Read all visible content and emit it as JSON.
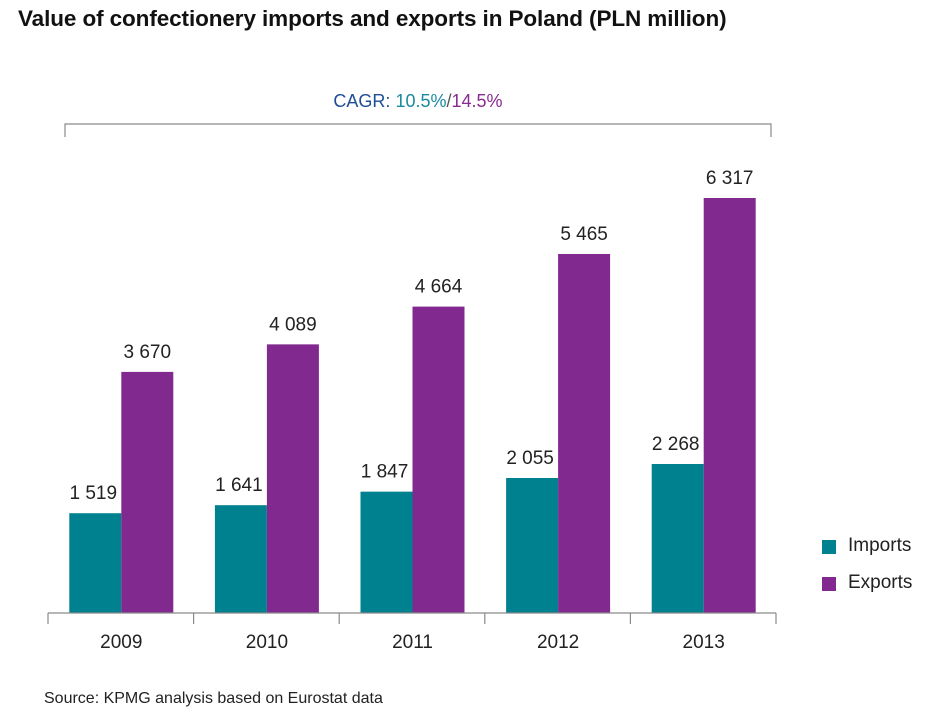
{
  "title": "Value of confectionery imports and exports in Poland (PLN million)",
  "cagr": {
    "label": "CAGR:",
    "imports": "10.5%",
    "separator": "/",
    "exports": "14.5%"
  },
  "source": "Source: KPMG analysis based on Eurostat data",
  "colors": {
    "imports": "#00818f",
    "exports": "#82298f",
    "axis": "#8a8a8a"
  },
  "legend": [
    {
      "name": "Imports",
      "color": "#00818f"
    },
    {
      "name": "Exports",
      "color": "#82298f"
    }
  ],
  "chart_data": {
    "type": "bar",
    "title": "Value of confectionery imports and exports in Poland (PLN million)",
    "xlabel": "",
    "ylabel": "",
    "categories": [
      "2009",
      "2010",
      "2011",
      "2012",
      "2013"
    ],
    "series": [
      {
        "name": "Imports",
        "values": [
          1519,
          1641,
          1847,
          2055,
          2268
        ],
        "labels": [
          "1 519",
          "1 641",
          "1 847",
          "2 055",
          "2 268"
        ]
      },
      {
        "name": "Exports",
        "values": [
          3670,
          4089,
          4664,
          5465,
          6317
        ],
        "labels": [
          "3 670",
          "4 089",
          "4 664",
          "5 465",
          "6 317"
        ]
      }
    ],
    "ylim": [
      0,
      6317
    ],
    "grid": false,
    "legend_position": "bottom-right"
  }
}
